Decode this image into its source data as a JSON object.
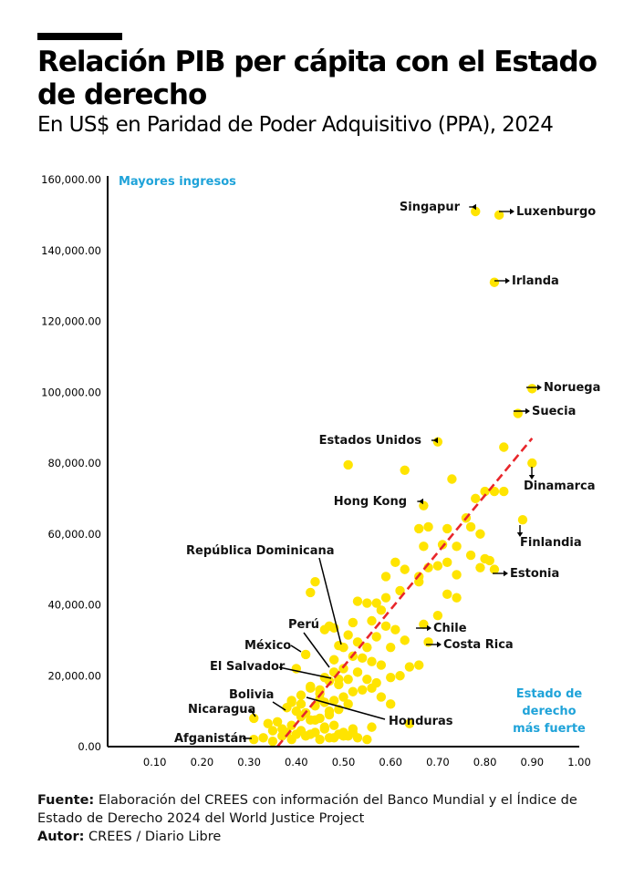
{
  "header": {
    "title": "Relación PIB per cápita con el Estado de derecho",
    "subtitle": "En US$ en Paridad de Poder Adquisitivo (PPA), 2024"
  },
  "footer": {
    "source_label": "Fuente:",
    "source_text": "Elaboración del CREES con información del Banco Mundial y el Índice de Estado de Derecho 2024 del World Justice Project",
    "author_label": "Autor:",
    "author_text": "CREES / Diario Libre"
  },
  "colors": {
    "point": "#FFE400",
    "trend": "#E8262B",
    "accent": "#1FA3D9",
    "axis": "#000000"
  },
  "chart_data": {
    "type": "scatter",
    "xlim": [
      0.0,
      1.0
    ],
    "ylim": [
      0,
      160000
    ],
    "x_ticks": [
      0.1,
      0.2,
      0.3,
      0.4,
      0.5,
      0.6,
      0.7,
      0.8,
      0.9,
      1.0
    ],
    "x_tick_labels": [
      "0.10",
      "0.20",
      "0.30",
      "0.40",
      "0.50",
      "0.60",
      "0.70",
      "0.80",
      "0.90",
      "1.00"
    ],
    "y_ticks": [
      0,
      20000,
      40000,
      60000,
      80000,
      100000,
      120000,
      140000,
      160000
    ],
    "y_tick_labels": [
      "0.00",
      "20,000.00",
      "40,000.00",
      "60,000.00",
      "80,000.00",
      "100,000.00",
      "120,000.00",
      "140,000.00",
      "160,000.00"
    ],
    "grid": false,
    "annotations": {
      "top_left": "Mayores ingresos",
      "bottom_right": [
        "Estado de",
        "derecho",
        "más fuerte"
      ]
    },
    "trendline": {
      "x": [
        0.36,
        0.9
      ],
      "y": [
        0,
        87000
      ]
    },
    "labeled_points": [
      {
        "label": "Singapur",
        "x": 0.78,
        "y": 151000,
        "side": "left-arrow"
      },
      {
        "label": "Luxenburgo",
        "x": 0.83,
        "y": 150000,
        "side": "right-arrow"
      },
      {
        "label": "Irlanda",
        "x": 0.82,
        "y": 131000,
        "side": "right-arrow"
      },
      {
        "label": "Noruega",
        "x": 0.9,
        "y": 101000,
        "side": "right-arrow"
      },
      {
        "label": "Suecia",
        "x": 0.87,
        "y": 94000,
        "side": "right-arrow"
      },
      {
        "label": "Estados Unidos",
        "x": 0.7,
        "y": 86000,
        "side": "left-arrow"
      },
      {
        "label": "Dinamarca",
        "x": 0.9,
        "y": 80000,
        "side": "below-arrow"
      },
      {
        "label": "Hong Kong",
        "x": 0.67,
        "y": 68000,
        "side": "left-arrow"
      },
      {
        "label": "Finlandia",
        "x": 0.88,
        "y": 64000,
        "side": "below-arrow"
      },
      {
        "label": "Estonia",
        "x": 0.82,
        "y": 50000,
        "side": "right-arrow"
      },
      {
        "label": "República Dominicana",
        "x": 0.5,
        "y": 28000,
        "side": "leader"
      },
      {
        "label": "Chile",
        "x": 0.67,
        "y": 34500,
        "side": "right-arrow"
      },
      {
        "label": "Costa Rica",
        "x": 0.68,
        "y": 29500,
        "side": "right-arrow"
      },
      {
        "label": "Perú",
        "x": 0.48,
        "y": 24500,
        "side": "leader"
      },
      {
        "label": "México",
        "x": 0.42,
        "y": 26000,
        "side": "leader"
      },
      {
        "label": "El Salvador",
        "x": 0.49,
        "y": 19000,
        "side": "leader"
      },
      {
        "label": "Bolivia",
        "x": 0.39,
        "y": 13000,
        "side": "leader"
      },
      {
        "label": "Honduras",
        "x": 0.45,
        "y": 13500,
        "side": "leader"
      },
      {
        "label": "Nicaragua",
        "x": 0.31,
        "y": 8000,
        "side": "leader"
      },
      {
        "label": "Afganistán",
        "x": 0.31,
        "y": 2000,
        "side": "leader"
      }
    ],
    "x": [
      0.63,
      0.51,
      0.73,
      0.84,
      0.8,
      0.78,
      0.76,
      0.82,
      0.84,
      0.79,
      0.77,
      0.66,
      0.72,
      0.68,
      0.67,
      0.71,
      0.74,
      0.72,
      0.7,
      0.74,
      0.8,
      0.81,
      0.77,
      0.79,
      0.63,
      0.66,
      0.68,
      0.61,
      0.59,
      0.53,
      0.55,
      0.57,
      0.58,
      0.56,
      0.59,
      0.62,
      0.66,
      0.74,
      0.7,
      0.72,
      0.44,
      0.43,
      0.47,
      0.48,
      0.52,
      0.46,
      0.4,
      0.51,
      0.49,
      0.53,
      0.55,
      0.57,
      0.59,
      0.61,
      0.6,
      0.63,
      0.64,
      0.58,
      0.56,
      0.54,
      0.52,
      0.5,
      0.48,
      0.46,
      0.47,
      0.49,
      0.51,
      0.53,
      0.55,
      0.57,
      0.6,
      0.62,
      0.66,
      0.45,
      0.43,
      0.41,
      0.39,
      0.38,
      0.4,
      0.42,
      0.44,
      0.46,
      0.48,
      0.5,
      0.52,
      0.54,
      0.56,
      0.58,
      0.49,
      0.51,
      0.47,
      0.45,
      0.43,
      0.41,
      0.39,
      0.37,
      0.35,
      0.34,
      0.36,
      0.38,
      0.4,
      0.42,
      0.44,
      0.46,
      0.48,
      0.5,
      0.52,
      0.55,
      0.33,
      0.35,
      0.37,
      0.39,
      0.41,
      0.43,
      0.45,
      0.47,
      0.49,
      0.51,
      0.53,
      0.56,
      0.6,
      0.64,
      0.42,
      0.44,
      0.46,
      0.48,
      0.5,
      0.52,
      0.47,
      0.45,
      0.43,
      0.41
    ],
    "y": [
      78000,
      79500,
      75500,
      84500,
      72000,
      70000,
      64500,
      72000,
      72000,
      60000,
      62000,
      61500,
      61500,
      62000,
      56500,
      57000,
      56500,
      52000,
      51000,
      48500,
      53000,
      52500,
      54000,
      50500,
      50000,
      48000,
      50500,
      52000,
      48000,
      41000,
      40500,
      40500,
      38500,
      35500,
      42000,
      44000,
      46500,
      42000,
      37000,
      43000,
      46500,
      43500,
      34000,
      33500,
      35000,
      33000,
      22000,
      31500,
      28500,
      29500,
      28000,
      31000,
      34000,
      33000,
      28000,
      30000,
      22500,
      23000,
      24000,
      25000,
      25500,
      22000,
      21000,
      19500,
      18500,
      17500,
      19000,
      21000,
      19000,
      18000,
      19500,
      20000,
      23000,
      16000,
      16500,
      14500,
      12500,
      11000,
      10000,
      9500,
      11500,
      12500,
      13000,
      14000,
      15500,
      16000,
      16500,
      14000,
      10500,
      12000,
      9000,
      8000,
      7500,
      8500,
      6000,
      5000,
      4500,
      6500,
      7000,
      4000,
      3500,
      3000,
      4000,
      5500,
      2500,
      3000,
      4000,
      2000,
      2500,
      1500,
      3000,
      2000,
      4500,
      3500,
      2000,
      2500,
      3500,
      3000,
      2500,
      5500,
      12000,
      6500,
      9500,
      7500,
      5000,
      6000,
      4000,
      5000,
      10000,
      15000,
      17000,
      12000
    ]
  }
}
